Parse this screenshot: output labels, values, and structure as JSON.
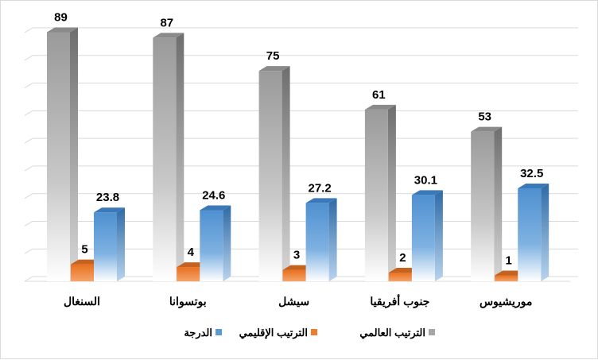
{
  "chart_data": {
    "type": "bar",
    "style": "3d-clustered-column",
    "categories": [
      "السنغال",
      "بوتسوانا",
      "سيشل",
      "جنوب أفريقيا",
      "موريشيوس"
    ],
    "series": [
      {
        "name": "الترتيب العالمي",
        "color": "#a6a6a6",
        "values": [
          89,
          87,
          75,
          61,
          53
        ]
      },
      {
        "name": "الترتيب الإقليمي",
        "color": "#ed7d31",
        "values": [
          5,
          4,
          3,
          2,
          1
        ]
      },
      {
        "name": "الدرجة",
        "color": "#5b9bd5",
        "values": [
          23.8,
          24.6,
          27.2,
          30.1,
          32.5
        ]
      }
    ],
    "ylim": [
      0,
      90
    ],
    "grid": true,
    "legend": "bottom",
    "data_labels": true
  }
}
